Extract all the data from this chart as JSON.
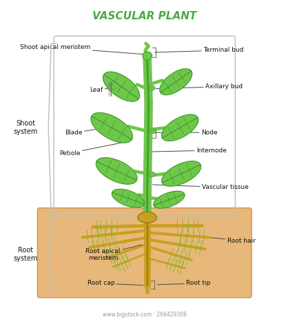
{
  "title": "VASCULAR PLANT",
  "title_color": "#4aaa44",
  "title_fontsize": 11,
  "bg_color": "#ffffff",
  "soil_color": "#e8b87a",
  "soil_edge": "#c8965a",
  "stem_color": "#6dc84a",
  "stem_dark": "#4a9a35",
  "leaf_fill": "#6dc84a",
  "leaf_edge": "#3d8a2a",
  "root_fill": "#c8a020",
  "root_dark": "#a07818",
  "root_green": "#7ab832",
  "label_color": "#111111",
  "label_fs": 6.5,
  "shoot_label": "Shoot\nsystem",
  "root_label": "Root\nsystem",
  "watermark": "www.bigstock.com · 266429308",
  "wm_color": "#999999",
  "wm_fs": 5.5
}
